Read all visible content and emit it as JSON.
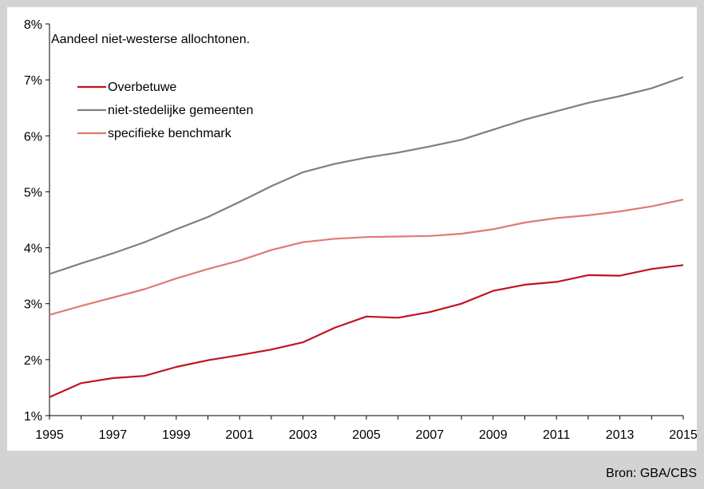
{
  "chart_data": {
    "type": "line",
    "title": "Aandeel niet-westerse allochtonen.",
    "xlabel": "",
    "ylabel": "",
    "x": [
      1995,
      1996,
      1997,
      1998,
      1999,
      2000,
      2001,
      2002,
      2003,
      2004,
      2005,
      2006,
      2007,
      2008,
      2009,
      2010,
      2011,
      2012,
      2013,
      2014,
      2015
    ],
    "xlim": [
      1995,
      2015
    ],
    "x_tick_labels": [
      "1995",
      "1997",
      "1999",
      "2001",
      "2003",
      "2005",
      "2007",
      "2009",
      "2011",
      "2013",
      "2015"
    ],
    "ylim": [
      1,
      8
    ],
    "y_tick_labels": [
      "1%",
      "2%",
      "3%",
      "4%",
      "5%",
      "6%",
      "7%",
      "8%"
    ],
    "grid": false,
    "legend_position": "top-left",
    "series": [
      {
        "name": "Overbetuwe",
        "color": "#c0141e",
        "values": [
          1.33,
          1.58,
          1.67,
          1.71,
          1.87,
          1.99,
          2.08,
          2.18,
          2.31,
          2.57,
          2.77,
          2.75,
          2.85,
          3.0,
          3.23,
          3.34,
          3.39,
          3.51,
          3.5,
          3.62,
          3.69
        ]
      },
      {
        "name": "niet-stedelijke gemeenten",
        "color": "#7f7f7f",
        "values": [
          3.53,
          3.72,
          3.9,
          4.1,
          4.33,
          4.55,
          4.82,
          5.1,
          5.35,
          5.5,
          5.61,
          5.7,
          5.81,
          5.93,
          6.11,
          6.29,
          6.44,
          6.59,
          6.71,
          6.85,
          7.05
        ]
      },
      {
        "name": "specifieke benchmark",
        "color": "#e07a72",
        "values": [
          2.8,
          2.96,
          3.11,
          3.26,
          3.45,
          3.62,
          3.77,
          3.96,
          4.1,
          4.16,
          4.19,
          4.2,
          4.21,
          4.25,
          4.33,
          4.45,
          4.53,
          4.58,
          4.65,
          4.74,
          4.86
        ]
      }
    ]
  },
  "footer": {
    "source": "Bron: GBA/CBS"
  }
}
